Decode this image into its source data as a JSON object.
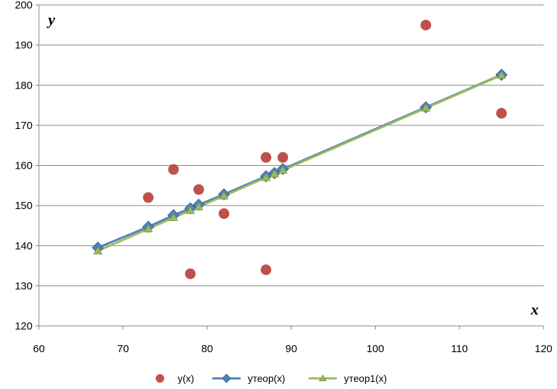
{
  "chart_data": {
    "type": "scatter",
    "xlabel": "x",
    "ylabel": "y",
    "xlim": [
      60,
      120
    ],
    "ylim": [
      120,
      200
    ],
    "xticks": [
      60,
      70,
      80,
      90,
      100,
      110,
      120
    ],
    "yticks": [
      120,
      130,
      140,
      150,
      160,
      170,
      180,
      190,
      200
    ],
    "grid": "horizontal",
    "legend_position": "bottom",
    "series": [
      {
        "name": "y(x)",
        "style": "markers",
        "marker": "circle",
        "color": "#C0504D",
        "points": [
          [
            73,
            152
          ],
          [
            76,
            159
          ],
          [
            78,
            133
          ],
          [
            79,
            154
          ],
          [
            82,
            148
          ],
          [
            87,
            162
          ],
          [
            87,
            134
          ],
          [
            89,
            162
          ],
          [
            106,
            195
          ],
          [
            115,
            173
          ]
        ]
      },
      {
        "name": "yтеор(x)",
        "style": "line-markers",
        "marker": "diamond",
        "color": "#4F81BD",
        "points": [
          [
            67,
            139.5
          ],
          [
            73,
            144.7
          ],
          [
            76,
            147.6
          ],
          [
            78,
            149.3
          ],
          [
            79,
            150.2
          ],
          [
            82,
            152.8
          ],
          [
            87,
            157.3
          ],
          [
            88,
            158.1
          ],
          [
            89,
            159.1
          ],
          [
            106,
            174.5
          ],
          [
            115,
            182.6
          ]
        ]
      },
      {
        "name": "yтеор1(x)",
        "style": "line-markers",
        "marker": "triangle",
        "color": "#9BBB59",
        "points": [
          [
            67,
            138.7
          ],
          [
            73,
            144.2
          ],
          [
            76,
            147.0
          ],
          [
            78,
            148.8
          ],
          [
            79,
            149.7
          ],
          [
            82,
            152.4
          ],
          [
            87,
            157.0
          ],
          [
            88,
            157.9
          ],
          [
            89,
            158.8
          ],
          [
            106,
            174.3
          ],
          [
            115,
            182.5
          ]
        ]
      }
    ]
  }
}
